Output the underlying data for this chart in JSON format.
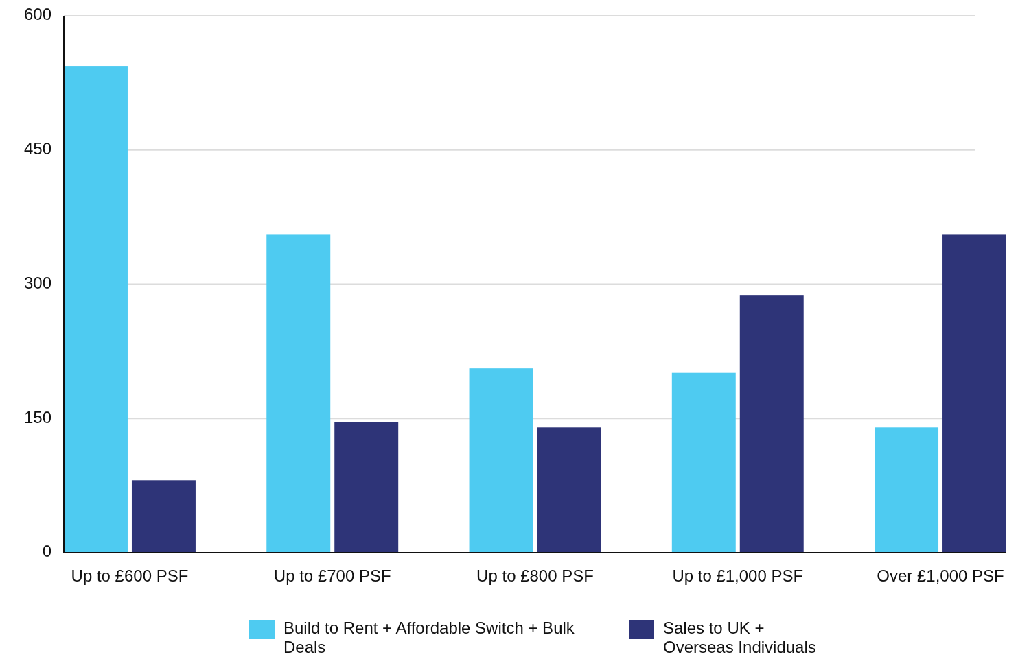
{
  "chart_data": {
    "type": "bar",
    "categories": [
      "Up to £600 PSF",
      "Up to £700 PSF",
      "Up to £800 PSF",
      "Up to £1,000 PSF",
      "Over £1,000 PSF"
    ],
    "series": [
      {
        "name": "Build to Rent + Affordable Switch + Bulk Deals",
        "color": "#4ecbf1",
        "values": [
          544,
          356,
          206,
          201,
          140
        ]
      },
      {
        "name": "Sales to UK + Overseas Individuals",
        "color": "#2e3478",
        "values": [
          81,
          146,
          140,
          288,
          356
        ]
      }
    ],
    "ylim": [
      0,
      600
    ],
    "yticks": [
      0,
      150,
      300,
      450,
      600
    ],
    "grid": "y",
    "legend": "bottom"
  }
}
